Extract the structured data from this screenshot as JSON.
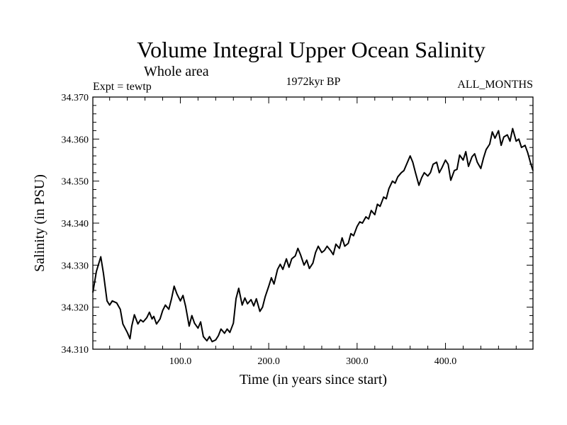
{
  "chart_data": {
    "type": "line",
    "title": "Volume Integral Upper Ocean Salinity",
    "subtitle": "Whole area",
    "header_left": "Expt = tewtp",
    "header_center": "1972kyr BP",
    "header_right": "ALL_MONTHS",
    "xlabel": "Time (in years since start)",
    "ylabel": "Salinity (in PSU)",
    "xlim": [
      1,
      499
    ],
    "ylim": [
      34.31,
      34.37
    ],
    "x_ticks": [
      100,
      200,
      300,
      400
    ],
    "x_tick_labels": [
      "100.0",
      "200.0",
      "300.0",
      "400.0"
    ],
    "y_ticks": [
      34.31,
      34.32,
      34.33,
      34.34,
      34.35,
      34.36,
      34.37
    ],
    "y_tick_labels": [
      "34.310",
      "34.320",
      "34.330",
      "34.340",
      "34.350",
      "34.360",
      "34.370"
    ],
    "x": [
      1,
      5,
      10,
      13,
      17,
      20,
      23,
      28,
      32,
      35,
      40,
      43,
      45,
      48,
      52,
      55,
      58,
      62,
      65,
      68,
      70,
      73,
      77,
      80,
      83,
      87,
      90,
      93,
      96,
      100,
      103,
      106,
      110,
      113,
      116,
      120,
      123,
      126,
      130,
      133,
      136,
      140,
      143,
      146,
      150,
      153,
      156,
      160,
      163,
      166,
      170,
      173,
      176,
      180,
      183,
      186,
      190,
      193,
      196,
      200,
      203,
      206,
      210,
      213,
      216,
      220,
      223,
      226,
      230,
      233,
      236,
      240,
      243,
      246,
      250,
      253,
      256,
      260,
      263,
      266,
      270,
      273,
      276,
      280,
      283,
      286,
      290,
      293,
      296,
      300,
      303,
      306,
      310,
      313,
      316,
      320,
      323,
      326,
      330,
      333,
      336,
      340,
      343,
      346,
      350,
      353,
      356,
      360,
      363,
      366,
      370,
      373,
      376,
      380,
      383,
      386,
      390,
      393,
      396,
      400,
      403,
      406,
      410,
      413,
      416,
      420,
      423,
      426,
      430,
      433,
      436,
      440,
      443,
      446,
      450,
      453,
      456,
      460,
      463,
      466,
      470,
      473,
      476,
      480,
      483,
      486,
      490,
      493,
      496,
      499
    ],
    "series": [
      {
        "name": "Salinity",
        "values": [
          34.3235,
          34.3285,
          34.332,
          34.328,
          34.3215,
          34.3205,
          34.3215,
          34.321,
          34.3195,
          34.316,
          34.314,
          34.3125,
          34.3155,
          34.3182,
          34.316,
          34.317,
          34.3165,
          34.3175,
          34.3188,
          34.3172,
          34.3178,
          34.316,
          34.3172,
          34.3192,
          34.3205,
          34.3195,
          34.322,
          34.325,
          34.3232,
          34.3215,
          34.3228,
          34.3202,
          34.3155,
          34.318,
          34.3162,
          34.315,
          34.3165,
          34.313,
          34.312,
          34.313,
          34.3118,
          34.3122,
          34.3132,
          34.3148,
          34.3138,
          34.3148,
          34.314,
          34.3162,
          34.322,
          34.3245,
          34.3205,
          34.3222,
          34.3208,
          34.3218,
          34.3203,
          34.322,
          34.319,
          34.32,
          34.3225,
          34.325,
          34.327,
          34.3255,
          34.329,
          34.3302,
          34.329,
          34.3315,
          34.3295,
          34.3315,
          34.3322,
          34.334,
          34.3325,
          34.33,
          34.3312,
          34.3292,
          34.3305,
          34.333,
          34.3345,
          34.333,
          34.3335,
          34.3345,
          34.3335,
          34.3325,
          34.335,
          34.334,
          34.3365,
          34.3345,
          34.3352,
          34.3375,
          34.337,
          34.3392,
          34.3403,
          34.34,
          34.3415,
          34.341,
          34.343,
          34.342,
          34.3445,
          34.344,
          34.3462,
          34.3458,
          34.3482,
          34.35,
          34.3495,
          34.351,
          34.352,
          34.3525,
          34.354,
          34.356,
          34.3545,
          34.352,
          34.349,
          34.3508,
          34.352,
          34.3512,
          34.352,
          34.354,
          34.3545,
          34.352,
          34.3532,
          34.355,
          34.354,
          34.3502,
          34.3525,
          34.3528,
          34.3562,
          34.355,
          34.357,
          34.3535,
          34.3558,
          34.3565,
          34.3545,
          34.353,
          34.3555,
          34.3575,
          34.3588,
          34.3617,
          34.3602,
          34.362,
          34.3585,
          34.3605,
          34.361,
          34.3595,
          34.3625,
          34.3595,
          34.36,
          34.358,
          34.3585,
          34.3568,
          34.3545,
          34.3525
        ]
      }
    ]
  }
}
